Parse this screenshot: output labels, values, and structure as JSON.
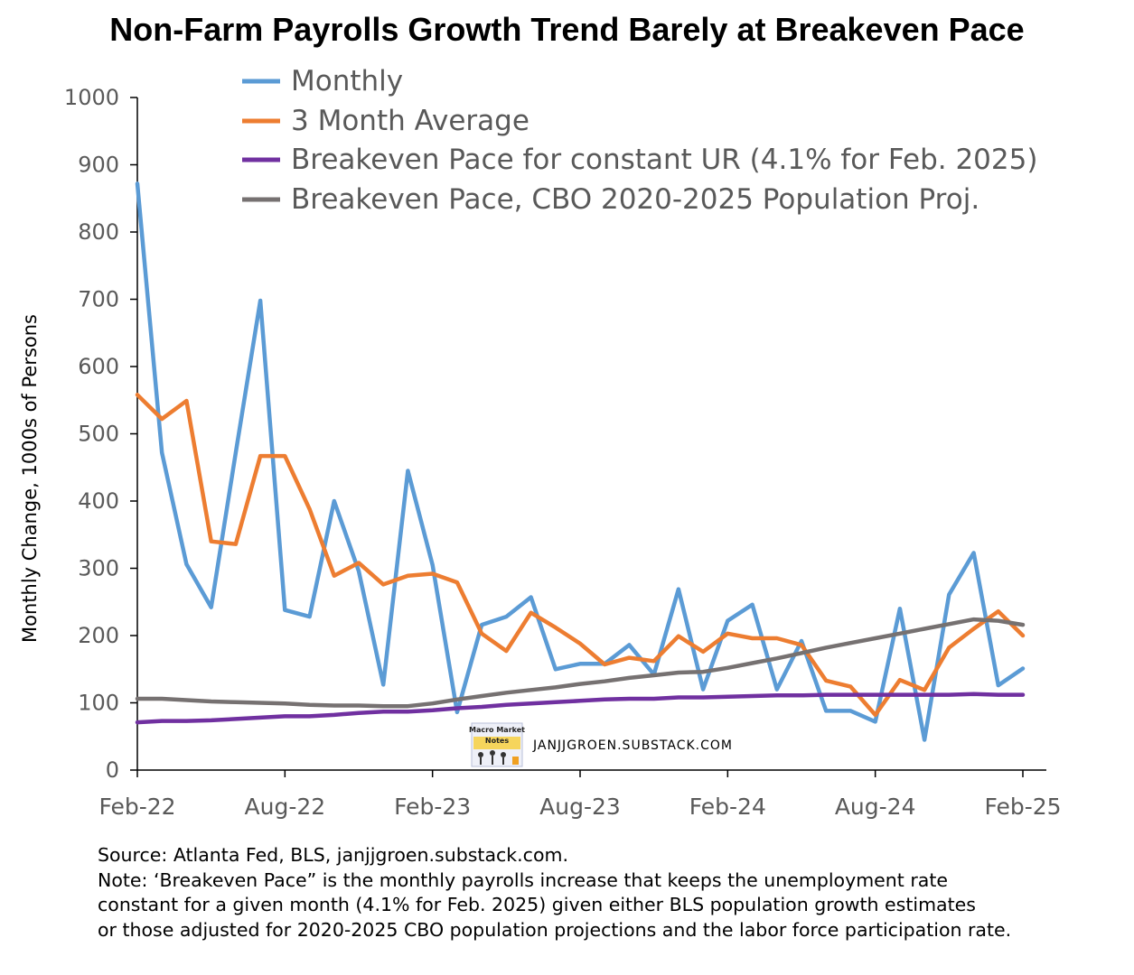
{
  "title": "Non-Farm Payrolls Growth Trend Barely at Breakeven Pace",
  "watermark": {
    "logo_text_line1": "Macro Market",
    "logo_text_line2": "Notes",
    "site": "JANJJGROEN.SUBSTACK.COM"
  },
  "footer": {
    "source": "Source: Atlanta Fed, BLS, janjjgroen.substack.com.",
    "note_line1": "Note: ‘Breakeven Pace” is the monthly payrolls increase that keeps the unemployment rate",
    "note_line2": "constant for a given month (4.1% for Feb. 2025) given either BLS population growth estimates",
    "note_line3": "or those adjusted for 2020-2025 CBO population projections and the labor force participation rate."
  },
  "chart_data": {
    "type": "line",
    "title": "Non-Farm Payrolls Growth Trend Barely at Breakeven Pace",
    "xlabel": "",
    "ylabel": "Monthly Change, 1000s of Persons",
    "ylim": [
      0,
      1000
    ],
    "yticks": [
      "0",
      "100",
      "200",
      "300",
      "400",
      "500",
      "600",
      "700",
      "800",
      "900",
      "1000"
    ],
    "xticks": [
      "Feb-22",
      "Aug-22",
      "Feb-23",
      "Aug-23",
      "Feb-24",
      "Aug-24",
      "Feb-25"
    ],
    "x": [
      "Feb-22",
      "Mar-22",
      "Apr-22",
      "May-22",
      "Jun-22",
      "Jul-22",
      "Aug-22",
      "Sep-22",
      "Oct-22",
      "Nov-22",
      "Dec-22",
      "Jan-23",
      "Feb-23",
      "Mar-23",
      "Apr-23",
      "May-23",
      "Jun-23",
      "Jul-23",
      "Aug-23",
      "Sep-23",
      "Oct-23",
      "Nov-23",
      "Dec-23",
      "Jan-24",
      "Feb-24",
      "Mar-24",
      "Apr-24",
      "May-24",
      "Jun-24",
      "Jul-24",
      "Aug-24",
      "Sep-24",
      "Oct-24",
      "Nov-24",
      "Dec-24",
      "Jan-25",
      "Feb-25"
    ],
    "legend_position": "top",
    "grid": false,
    "series": [
      {
        "name": "Monthly",
        "color": "#5B9BD5",
        "values": [
          872,
          472,
          306,
          242,
          472,
          698,
          238,
          228,
          400,
          296,
          127,
          445,
          305,
          86,
          216,
          228,
          257,
          150,
          158,
          158,
          186,
          142,
          269,
          120,
          222,
          246,
          120,
          192,
          88,
          88,
          72,
          240,
          45,
          261,
          323,
          126,
          151
        ]
      },
      {
        "name": "3 Month Average",
        "color": "#ED7D31",
        "values": [
          558,
          522,
          549,
          340,
          336,
          467,
          467,
          388,
          289,
          308,
          276,
          289,
          292,
          279,
          203,
          177,
          234,
          212,
          188,
          157,
          167,
          162,
          199,
          176,
          203,
          196,
          196,
          186,
          133,
          124,
          82,
          134,
          119,
          182,
          210,
          236,
          200
        ]
      },
      {
        "name": "Breakeven Pace for constant UR (4.1% for Feb. 2025)",
        "color": "#7030A0",
        "values": [
          71,
          73,
          73,
          74,
          76,
          78,
          80,
          80,
          82,
          85,
          87,
          87,
          89,
          92,
          94,
          97,
          99,
          101,
          103,
          105,
          106,
          106,
          108,
          108,
          109,
          110,
          111,
          111,
          112,
          112,
          112,
          112,
          112,
          112,
          113,
          112,
          112
        ]
      },
      {
        "name": "Breakeven Pace, CBO 2020-2025 Population Proj.",
        "color": "#767171",
        "values": [
          106,
          106,
          104,
          102,
          101,
          100,
          99,
          97,
          96,
          96,
          95,
          95,
          99,
          105,
          110,
          115,
          119,
          123,
          128,
          132,
          137,
          141,
          145,
          146,
          152,
          159,
          166,
          174,
          182,
          189,
          196,
          203,
          210,
          217,
          224,
          222,
          216
        ]
      }
    ]
  }
}
